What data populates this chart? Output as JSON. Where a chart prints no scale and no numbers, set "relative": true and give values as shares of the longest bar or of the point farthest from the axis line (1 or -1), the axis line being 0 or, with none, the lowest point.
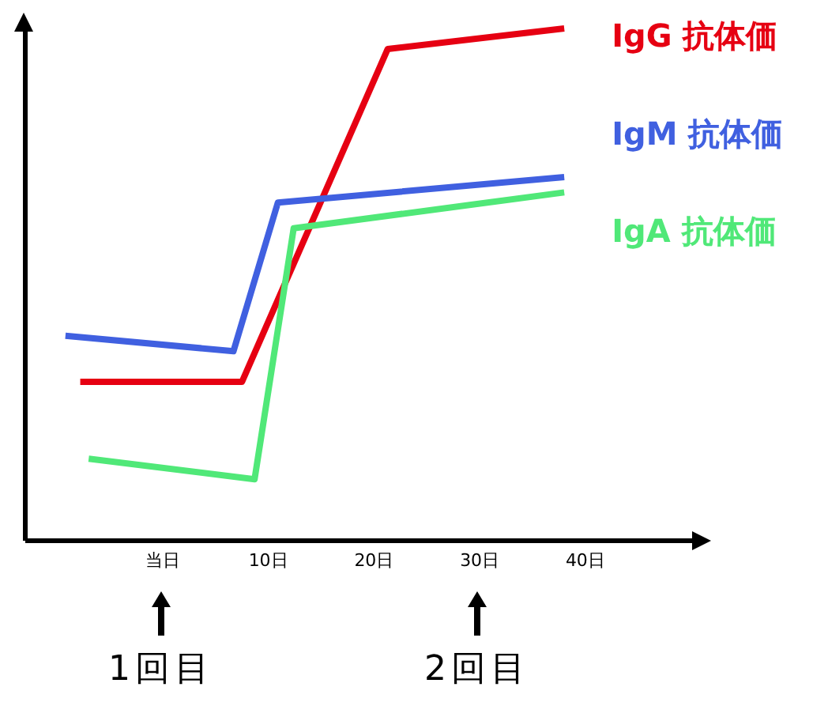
{
  "chart_data": {
    "type": "line",
    "relative": true,
    "xlim": [
      -13,
      50.4
    ],
    "xticks": [
      {
        "value": 0,
        "label": "当日"
      },
      {
        "value": 10,
        "label": "10日"
      },
      {
        "value": 20,
        "label": "20日"
      },
      {
        "value": 30,
        "label": "30日"
      },
      {
        "value": 40,
        "label": "40日"
      }
    ],
    "series": [
      {
        "name": "IgG 抗体価",
        "color": "#e60012",
        "x": [
          -7.8,
          7.5,
          21.3,
          38
        ],
        "values": [
          0.31,
          0.31,
          0.96,
          1
        ]
      },
      {
        "name": "IgM 抗体価",
        "color": "#4060e0",
        "x": [
          -9.2,
          6.7,
          10.9,
          38
        ],
        "values": [
          0.4,
          0.37,
          0.66,
          0.71
        ]
      },
      {
        "name": "IgA 抗体価",
        "color": "#50e878",
        "x": [
          -7,
          8.7,
          12.4,
          38
        ],
        "values": [
          0.16,
          0.12,
          0.61,
          0.68
        ]
      }
    ],
    "annotations": [
      "1回目",
      "2回目"
    ],
    "grid": false,
    "legend": false,
    "marker": "none",
    "line_style": "solid"
  }
}
